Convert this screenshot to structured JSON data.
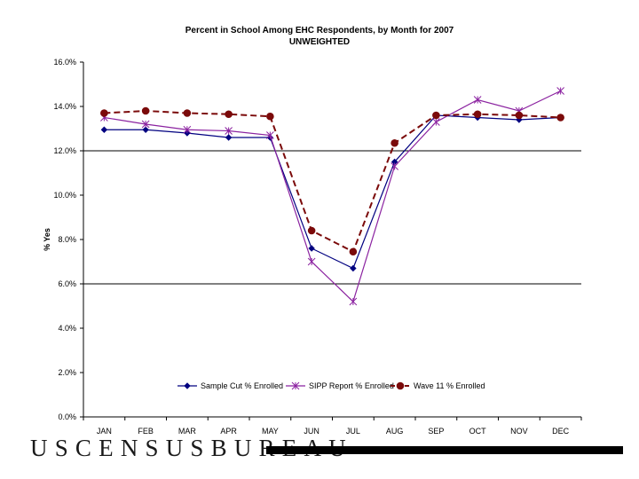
{
  "chart_data": {
    "type": "line",
    "title": "Percent in School Among EHC Respondents, by Month for 2007",
    "subtitle": "UNWEIGHTED",
    "xlabel": "",
    "ylabel": "% Yes",
    "categories": [
      "JAN",
      "FEB",
      "MAR",
      "APR",
      "MAY",
      "JUN",
      "JUL",
      "AUG",
      "SEP",
      "OCT",
      "NOV",
      "DEC"
    ],
    "ylim": [
      0,
      16
    ],
    "yticks": [
      0,
      2,
      4,
      6,
      8,
      10,
      12,
      14,
      16
    ],
    "ytick_labels": [
      "0.0%",
      "2.0%",
      "4.0%",
      "6.0%",
      "8.0%",
      "10.0%",
      "12.0%",
      "14.0%",
      "16.0%"
    ],
    "grid": "horizontal major lines",
    "legend_position": "bottom-inside",
    "series": [
      {
        "name": "Sample Cut % Enrolled",
        "color": "#000080",
        "marker": "diamond",
        "dash": "solid",
        "values": [
          12.95,
          12.95,
          12.8,
          12.6,
          12.6,
          7.6,
          6.7,
          11.5,
          13.6,
          13.5,
          13.4,
          13.5
        ]
      },
      {
        "name": "SIPP Report % Enrolled",
        "color": "#8b22a0",
        "marker": "asterisk",
        "dash": "solid",
        "values": [
          13.5,
          13.2,
          12.95,
          12.9,
          12.7,
          7.0,
          5.2,
          11.3,
          13.3,
          14.3,
          13.8,
          14.7
        ]
      },
      {
        "name": "Wave 11 % Enrolled",
        "color": "#7b0a0a",
        "marker": "circle",
        "dash": "dashed",
        "values": [
          13.7,
          13.8,
          13.7,
          13.65,
          13.55,
          8.4,
          7.45,
          12.35,
          13.6,
          13.65,
          13.6,
          13.5
        ]
      }
    ]
  },
  "footer": {
    "logo_text": "USCENSUSBUREAU"
  }
}
